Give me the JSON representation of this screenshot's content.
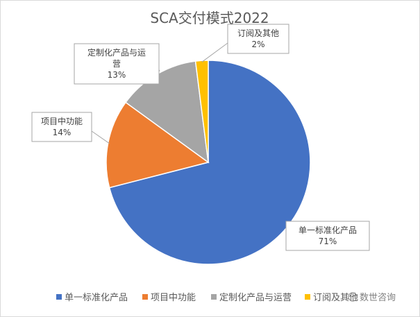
{
  "chart_data": {
    "type": "pie",
    "title": "SCA交付模式2022",
    "categories": [
      "单一标准化产品",
      "项目中功能",
      "定制化产品与运营",
      "订阅及其他"
    ],
    "values": [
      71,
      14,
      13,
      2
    ],
    "value_labels": [
      "71%",
      "14%",
      "13%",
      "2%"
    ],
    "colors": [
      "#4472C4",
      "#ED7D31",
      "#A5A5A5",
      "#FFC000"
    ],
    "legend_position": "bottom",
    "data_labels": "callouts"
  },
  "watermark": {
    "text": "数世咨询"
  }
}
